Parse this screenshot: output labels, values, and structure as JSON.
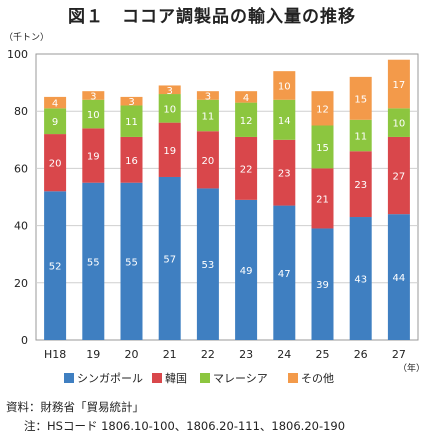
{
  "title": "図１　ココア調製品の輸入量の推移",
  "source": "資料：財務省「貿易統計」",
  "note": "注：HSコード 1806.10-100、1806.20-111、1806.20-190",
  "chart_data": {
    "type": "bar",
    "stacked": true,
    "ylabel": "（千トン）",
    "xunit": "（年）",
    "ylim": [
      0,
      100
    ],
    "yticks": [
      0,
      20,
      40,
      60,
      80,
      100
    ],
    "categories": [
      "H18",
      "19",
      "20",
      "21",
      "22",
      "23",
      "24",
      "25",
      "26",
      "27"
    ],
    "series": [
      {
        "name": "シンガポール",
        "color": "#3f7fc1",
        "values": [
          52,
          55,
          55,
          57,
          53,
          49,
          47,
          39,
          43,
          44
        ]
      },
      {
        "name": "韓国",
        "color": "#d9474b",
        "values": [
          20,
          19,
          16,
          19,
          20,
          22,
          23,
          21,
          23,
          27
        ]
      },
      {
        "name": "マレーシア",
        "color": "#8cc63f",
        "values": [
          9,
          10,
          11,
          10,
          11,
          12,
          14,
          15,
          11,
          10
        ]
      },
      {
        "name": "その他",
        "color": "#f39a4a",
        "values": [
          4,
          3,
          3,
          3,
          3,
          4,
          10,
          12,
          15,
          17
        ]
      }
    ],
    "grid": true,
    "legend": "bottom"
  }
}
